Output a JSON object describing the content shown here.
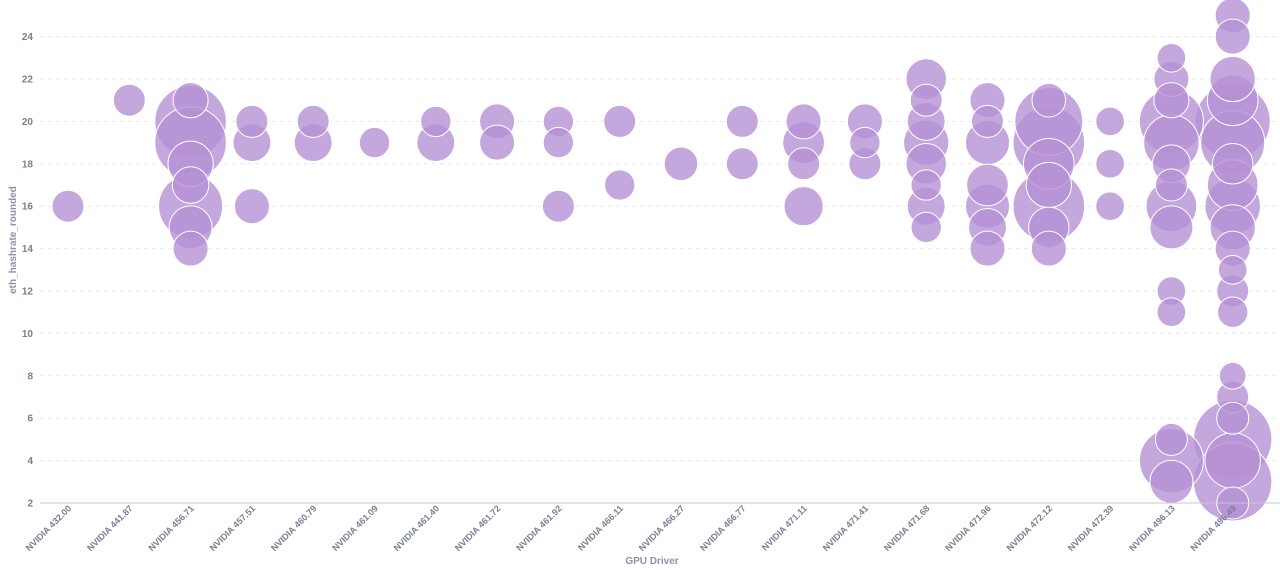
{
  "chart_data": {
    "type": "scatter",
    "xlabel": "GPU Driver",
    "ylabel": "eth_hashrate_rounded",
    "ylim": [
      2,
      25
    ],
    "yticks": [
      2,
      4,
      6,
      8,
      10,
      12,
      14,
      16,
      18,
      20,
      22,
      24
    ],
    "grid": true,
    "bubble_color": "#b591d4",
    "categories": [
      "NVIDIA 432.00",
      "NVIDIA 441.87",
      "NVIDIA 456.71",
      "NVIDIA 457.51",
      "NVIDIA 460.79",
      "NVIDIA 461.09",
      "NVIDIA 461.40",
      "NVIDIA 461.72",
      "NVIDIA 461.92",
      "NVIDIA 466.11",
      "NVIDIA 466.27",
      "NVIDIA 466.77",
      "NVIDIA 471.11",
      "NVIDIA 471.41",
      "NVIDIA 471.68",
      "NVIDIA 471.96",
      "NVIDIA 472.12",
      "NVIDIA 472.39",
      "NVIDIA 496.13",
      "NVIDIA 496.49"
    ],
    "points": [
      {
        "x": "NVIDIA 432.00",
        "y": 16,
        "size": 1
      },
      {
        "x": "NVIDIA 441.87",
        "y": 21,
        "size": 1
      },
      {
        "x": "NVIDIA 456.71",
        "y": 20,
        "size": 5
      },
      {
        "x": "NVIDIA 456.71",
        "y": 19,
        "size": 5
      },
      {
        "x": "NVIDIA 456.71",
        "y": 16,
        "size": 4
      },
      {
        "x": "NVIDIA 456.71",
        "y": 18,
        "size": 2
      },
      {
        "x": "NVIDIA 456.71",
        "y": 17,
        "size": 1.3
      },
      {
        "x": "NVIDIA 456.71",
        "y": 15,
        "size": 1.8
      },
      {
        "x": "NVIDIA 456.71",
        "y": 21,
        "size": 1.2
      },
      {
        "x": "NVIDIA 456.71",
        "y": 14,
        "size": 1.2
      },
      {
        "x": "NVIDIA 457.51",
        "y": 20,
        "size": 1
      },
      {
        "x": "NVIDIA 457.51",
        "y": 19,
        "size": 1.4
      },
      {
        "x": "NVIDIA 457.51",
        "y": 16,
        "size": 1.2
      },
      {
        "x": "NVIDIA 460.79",
        "y": 20,
        "size": 1
      },
      {
        "x": "NVIDIA 460.79",
        "y": 19,
        "size": 1.4
      },
      {
        "x": "NVIDIA 461.09",
        "y": 19,
        "size": 0.9
      },
      {
        "x": "NVIDIA 461.40",
        "y": 20,
        "size": 0.9
      },
      {
        "x": "NVIDIA 461.40",
        "y": 19,
        "size": 1.4
      },
      {
        "x": "NVIDIA 461.72",
        "y": 20,
        "size": 1.2
      },
      {
        "x": "NVIDIA 461.72",
        "y": 19,
        "size": 1.2
      },
      {
        "x": "NVIDIA 461.92",
        "y": 20,
        "size": 0.9
      },
      {
        "x": "NVIDIA 461.92",
        "y": 19,
        "size": 0.9
      },
      {
        "x": "NVIDIA 461.92",
        "y": 16,
        "size": 1
      },
      {
        "x": "NVIDIA 466.11",
        "y": 20,
        "size": 1
      },
      {
        "x": "NVIDIA 466.11",
        "y": 17,
        "size": 0.9
      },
      {
        "x": "NVIDIA 466.27",
        "y": 18,
        "size": 1.1
      },
      {
        "x": "NVIDIA 466.77",
        "y": 20,
        "size": 1
      },
      {
        "x": "NVIDIA 466.77",
        "y": 18,
        "size": 1
      },
      {
        "x": "NVIDIA 471.11",
        "y": 20,
        "size": 1.2
      },
      {
        "x": "NVIDIA 471.11",
        "y": 19,
        "size": 1.7
      },
      {
        "x": "NVIDIA 471.11",
        "y": 18,
        "size": 1
      },
      {
        "x": "NVIDIA 471.11",
        "y": 16,
        "size": 1.5
      },
      {
        "x": "NVIDIA 471.41",
        "y": 20,
        "size": 1.2
      },
      {
        "x": "NVIDIA 471.41",
        "y": 19,
        "size": 0.9
      },
      {
        "x": "NVIDIA 471.41",
        "y": 18,
        "size": 1
      },
      {
        "x": "NVIDIA 471.68",
        "y": 22,
        "size": 1.6
      },
      {
        "x": "NVIDIA 471.68",
        "y": 21,
        "size": 1
      },
      {
        "x": "NVIDIA 471.68",
        "y": 20,
        "size": 1.4
      },
      {
        "x": "NVIDIA 471.68",
        "y": 19,
        "size": 2
      },
      {
        "x": "NVIDIA 471.68",
        "y": 18,
        "size": 1.6
      },
      {
        "x": "NVIDIA 471.68",
        "y": 17,
        "size": 0.9
      },
      {
        "x": "NVIDIA 471.68",
        "y": 16,
        "size": 1.4
      },
      {
        "x": "NVIDIA 471.68",
        "y": 15,
        "size": 0.9
      },
      {
        "x": "NVIDIA 471.96",
        "y": 21,
        "size": 1.2
      },
      {
        "x": "NVIDIA 471.96",
        "y": 20,
        "size": 1
      },
      {
        "x": "NVIDIA 471.96",
        "y": 19,
        "size": 1.9
      },
      {
        "x": "NVIDIA 471.96",
        "y": 17,
        "size": 1.7
      },
      {
        "x": "NVIDIA 471.96",
        "y": 16,
        "size": 1.9
      },
      {
        "x": "NVIDIA 471.96",
        "y": 15,
        "size": 1.4
      },
      {
        "x": "NVIDIA 471.96",
        "y": 14,
        "size": 1.2
      },
      {
        "x": "NVIDIA 472.12",
        "y": 20,
        "size": 4.5
      },
      {
        "x": "NVIDIA 472.12",
        "y": 19,
        "size": 5
      },
      {
        "x": "NVIDIA 472.12",
        "y": 18,
        "size": 2.5
      },
      {
        "x": "NVIDIA 472.12",
        "y": 17,
        "size": 2
      },
      {
        "x": "NVIDIA 472.12",
        "y": 16,
        "size": 5
      },
      {
        "x": "NVIDIA 472.12",
        "y": 15,
        "size": 1.6
      },
      {
        "x": "NVIDIA 472.12",
        "y": 21,
        "size": 1.1
      },
      {
        "x": "NVIDIA 472.12",
        "y": 14,
        "size": 1.2
      },
      {
        "x": "NVIDIA 472.39",
        "y": 20,
        "size": 0.8
      },
      {
        "x": "NVIDIA 472.39",
        "y": 18,
        "size": 0.8
      },
      {
        "x": "NVIDIA 472.39",
        "y": 16,
        "size": 0.8
      },
      {
        "x": "NVIDIA 496.13",
        "y": 23,
        "size": 0.8
      },
      {
        "x": "NVIDIA 496.13",
        "y": 22,
        "size": 1.2
      },
      {
        "x": "NVIDIA 496.13",
        "y": 21,
        "size": 1.2
      },
      {
        "x": "NVIDIA 496.13",
        "y": 20,
        "size": 4
      },
      {
        "x": "NVIDIA 496.13",
        "y": 19,
        "size": 3
      },
      {
        "x": "NVIDIA 496.13",
        "y": 18,
        "size": 1.4
      },
      {
        "x": "NVIDIA 496.13",
        "y": 17,
        "size": 1
      },
      {
        "x": "NVIDIA 496.13",
        "y": 16,
        "size": 2.5
      },
      {
        "x": "NVIDIA 496.13",
        "y": 15,
        "size": 1.8
      },
      {
        "x": "NVIDIA 496.13",
        "y": 12,
        "size": 0.8
      },
      {
        "x": "NVIDIA 496.13",
        "y": 11,
        "size": 0.8
      },
      {
        "x": "NVIDIA 496.13",
        "y": 5,
        "size": 1
      },
      {
        "x": "NVIDIA 496.13",
        "y": 4,
        "size": 4
      },
      {
        "x": "NVIDIA 496.13",
        "y": 3,
        "size": 1.8
      },
      {
        "x": "NVIDIA 496.49",
        "y": 25,
        "size": 1.2
      },
      {
        "x": "NVIDIA 496.49",
        "y": 24,
        "size": 1.2
      },
      {
        "x": "NVIDIA 496.49",
        "y": 22,
        "size": 2
      },
      {
        "x": "NVIDIA 496.49",
        "y": 21,
        "size": 2.5
      },
      {
        "x": "NVIDIA 496.49",
        "y": 20,
        "size": 5.5
      },
      {
        "x": "NVIDIA 496.49",
        "y": 19,
        "size": 4
      },
      {
        "x": "NVIDIA 496.49",
        "y": 18,
        "size": 1.6
      },
      {
        "x": "NVIDIA 496.49",
        "y": 17,
        "size": 2.5
      },
      {
        "x": "NVIDIA 496.49",
        "y": 16,
        "size": 3
      },
      {
        "x": "NVIDIA 496.49",
        "y": 15,
        "size": 2
      },
      {
        "x": "NVIDIA 496.49",
        "y": 14,
        "size": 1.2
      },
      {
        "x": "NVIDIA 496.49",
        "y": 13,
        "size": 0.8
      },
      {
        "x": "NVIDIA 496.49",
        "y": 12,
        "size": 1
      },
      {
        "x": "NVIDIA 496.49",
        "y": 11,
        "size": 0.9
      },
      {
        "x": "NVIDIA 496.49",
        "y": 8,
        "size": 0.7
      },
      {
        "x": "NVIDIA 496.49",
        "y": 7,
        "size": 1
      },
      {
        "x": "NVIDIA 496.49",
        "y": 6,
        "size": 1
      },
      {
        "x": "NVIDIA 496.49",
        "y": 5,
        "size": 6
      },
      {
        "x": "NVIDIA 496.49",
        "y": 4,
        "size": 3
      },
      {
        "x": "NVIDIA 496.49",
        "y": 3,
        "size": 6
      },
      {
        "x": "NVIDIA 496.49",
        "y": 2,
        "size": 1
      }
    ]
  }
}
